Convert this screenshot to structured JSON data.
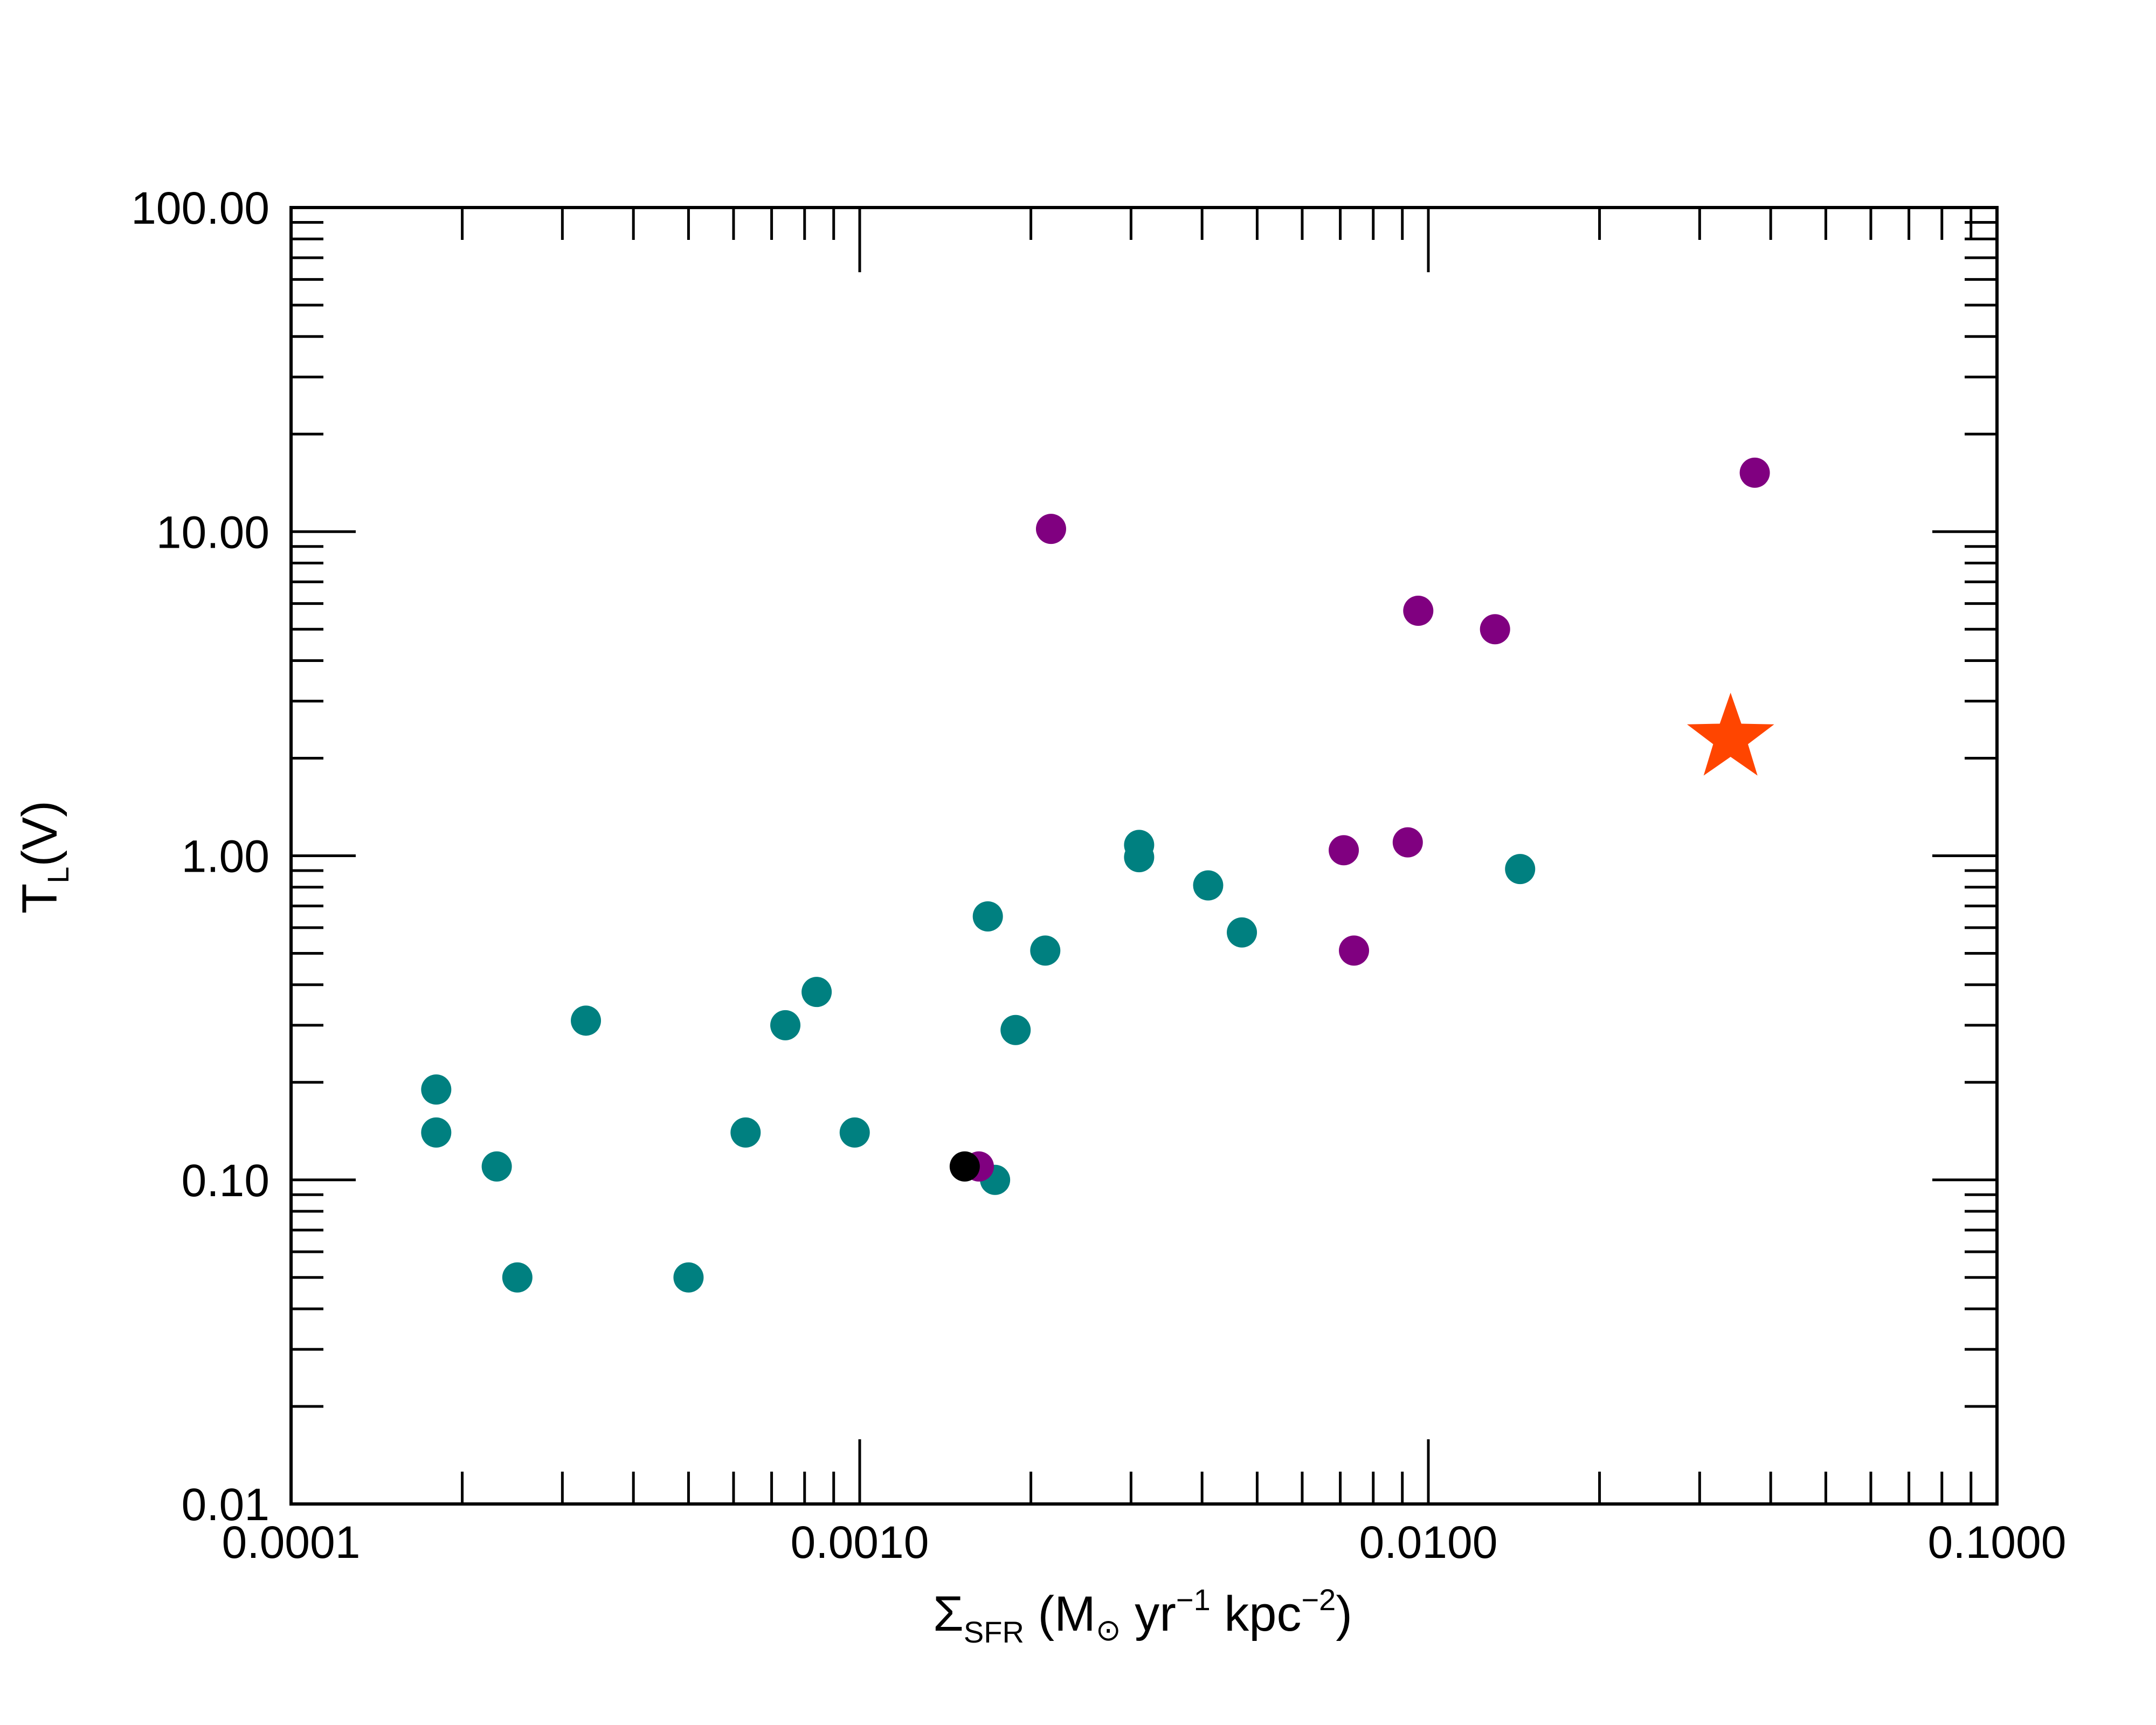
{
  "chart_data": {
    "type": "scatter",
    "xscale": "log",
    "yscale": "log",
    "xlim": [
      0.0001,
      0.1
    ],
    "ylim": [
      0.01,
      100
    ],
    "grid": false,
    "legend": "none",
    "title": "",
    "xlabel": {
      "symbol": "Σ",
      "sub": "SFR",
      "unit_open": " (M",
      "sun": "⊙",
      "mid": " yr",
      "sup1": "−1",
      "mid2": " kpc",
      "sup2": "−2",
      "close": ")"
    },
    "ylabel": {
      "main": "T",
      "sub": "L",
      "rest": "(V)"
    },
    "x_ticks": [
      {
        "value": 0.0001,
        "label": "0.0001"
      },
      {
        "value": 0.001,
        "label": "0.0010"
      },
      {
        "value": 0.01,
        "label": "0.0100"
      },
      {
        "value": 0.1,
        "label": "0.1000"
      }
    ],
    "y_ticks": [
      {
        "value": 0.01,
        "label": "0.01"
      },
      {
        "value": 0.1,
        "label": "0.10"
      },
      {
        "value": 1,
        "label": "1.00"
      },
      {
        "value": 10,
        "label": "10.00"
      },
      {
        "value": 100,
        "label": "100.00"
      }
    ],
    "series": [
      {
        "color": "#008080",
        "marker": "circle",
        "points": [
          [
            0.00018,
            0.19
          ],
          [
            0.00018,
            0.14
          ],
          [
            0.00023,
            0.11
          ],
          [
            0.00025,
            0.05
          ],
          [
            0.00033,
            0.31
          ],
          [
            0.0005,
            0.05
          ],
          [
            0.00063,
            0.14
          ],
          [
            0.00074,
            0.3
          ],
          [
            0.00084,
            0.38
          ],
          [
            0.00098,
            0.14
          ],
          [
            0.00168,
            0.65
          ],
          [
            0.00173,
            0.1
          ],
          [
            0.00188,
            0.29
          ],
          [
            0.00212,
            0.51
          ],
          [
            0.0031,
            1.08
          ],
          [
            0.0031,
            0.99
          ],
          [
            0.0041,
            0.81
          ],
          [
            0.0047,
            0.58
          ],
          [
            0.0145,
            0.91
          ]
        ]
      },
      {
        "color": "#800080",
        "marker": "circle",
        "points": [
          [
            0.00162,
            0.11
          ],
          [
            0.00217,
            10.2
          ],
          [
            0.0071,
            1.04
          ],
          [
            0.0074,
            0.51
          ],
          [
            0.0092,
            1.1
          ],
          [
            0.0096,
            5.7
          ],
          [
            0.0131,
            5.0
          ],
          [
            0.0375,
            15.2
          ]
        ]
      },
      {
        "color": "#000000",
        "marker": "circle",
        "points": [
          [
            0.00153,
            0.11
          ]
        ]
      },
      {
        "color": "#ff4500",
        "marker": "star",
        "points": [
          [
            0.034,
            2.3
          ]
        ]
      }
    ]
  }
}
